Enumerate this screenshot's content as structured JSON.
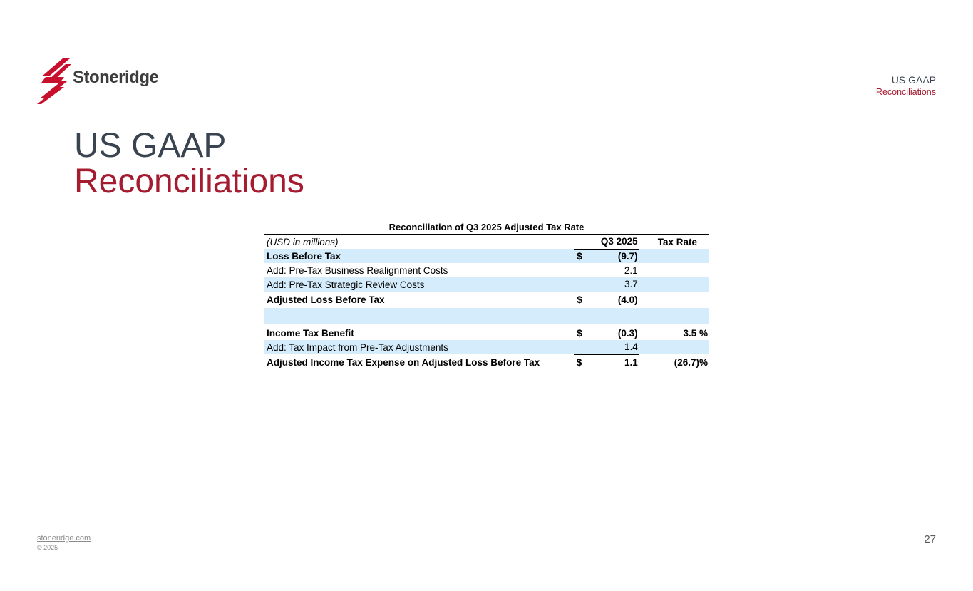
{
  "logo": {
    "text": "Stoneridge"
  },
  "corner": {
    "title": "US GAAP",
    "subtitle": "Reconciliations"
  },
  "title": {
    "line1": "US GAAP",
    "line2": "Reconciliations"
  },
  "table": {
    "caption": "Reconciliation of Q3 2025 Adjusted Tax Rate",
    "header": {
      "label": "(USD in millions)",
      "col1": "Q3 2025",
      "col2": "Tax Rate"
    },
    "rows": [
      {
        "label": "Loss Before Tax",
        "currency": "$",
        "value": "(9.7)",
        "rate": ""
      },
      {
        "label": "Add: Pre-Tax Business Realignment Costs",
        "currency": "",
        "value": "2.1",
        "rate": ""
      },
      {
        "label": "Add: Pre-Tax Strategic Review Costs",
        "currency": "",
        "value": "3.7",
        "rate": ""
      },
      {
        "label": "Adjusted Loss Before Tax",
        "currency": "$",
        "value": "(4.0)",
        "rate": ""
      },
      {
        "label": "",
        "currency": "",
        "value": "",
        "rate": ""
      },
      {
        "label": "Income Tax Benefit",
        "currency": "$",
        "value": "(0.3)",
        "rate": "3.5 %"
      },
      {
        "label": "Add: Tax Impact from Pre-Tax Adjustments",
        "currency": "",
        "value": "1.4",
        "rate": ""
      },
      {
        "label": "Adjusted Income Tax Expense on Adjusted Loss Before Tax",
        "currency": "$",
        "value": "1.1",
        "rate": "(26.7)%"
      }
    ]
  },
  "footer": {
    "link": "stoneridge.com",
    "copyright": "© 2025",
    "page": "27"
  },
  "colors": {
    "accent": "#a51c30",
    "heading": "#3a4450",
    "shade": "#d4ecfb"
  }
}
